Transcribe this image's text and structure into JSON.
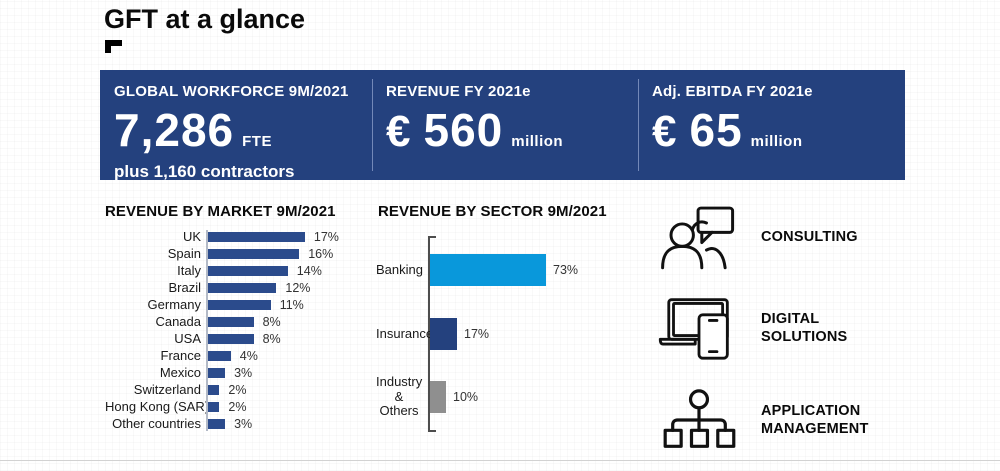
{
  "page": {
    "title": "GFT at a glance"
  },
  "kpis": {
    "workforce": {
      "label": "GLOBAL WORKFORCE 9M/2021",
      "value": "7,286",
      "unit": "FTE",
      "note": "plus 1,160 contractors"
    },
    "revenue": {
      "label": "REVENUE FY 2021e",
      "currency": "€",
      "value": "560",
      "unit": "million"
    },
    "ebitda": {
      "label": "Adj. EBITDA FY 2021e",
      "currency": "€",
      "value": "65",
      "unit": "million"
    }
  },
  "chart_data": [
    {
      "type": "bar",
      "orientation": "horizontal",
      "title": "REVENUE BY MARKET 9M/2021",
      "categories": [
        "UK",
        "Spain",
        "Italy",
        "Brazil",
        "Germany",
        "Canada",
        "USA",
        "France",
        "Mexico",
        "Switzerland",
        "Hong Kong (SAR)",
        "Other countries"
      ],
      "values": [
        17,
        16,
        14,
        12,
        11,
        8,
        8,
        4,
        3,
        2,
        2,
        3
      ],
      "value_suffix": "%",
      "bar_color": "#2B4B8C",
      "xlim": [
        0,
        18
      ],
      "grid": false,
      "legend": false
    },
    {
      "type": "bar",
      "orientation": "horizontal",
      "title": "REVENUE BY SECTOR 9M/2021",
      "categories": [
        "Banking",
        "Insurance",
        "Industry & Others"
      ],
      "values": [
        73,
        17,
        10
      ],
      "value_suffix": "%",
      "bar_colors": [
        "#0998DB",
        "#24417E",
        "#8F8F8F"
      ],
      "xlim": [
        0,
        80
      ],
      "grid": false,
      "legend": false
    }
  ],
  "services": [
    {
      "icon": "consulting-icon",
      "label": "CONSULTING"
    },
    {
      "icon": "digital-solutions-icon",
      "label": "DIGITAL SOLUTIONS"
    },
    {
      "icon": "application-management-icon",
      "label": "APPLICATION MANAGEMENT"
    }
  ],
  "colors": {
    "banner_navy": "#24417E",
    "market_bar_navy": "#2B4B8C",
    "banking_blue": "#0998DB",
    "insurance_navy": "#24417E",
    "others_gray": "#8F8F8F",
    "text_black": "#0A0A0A",
    "white": "#FFFFFF"
  }
}
